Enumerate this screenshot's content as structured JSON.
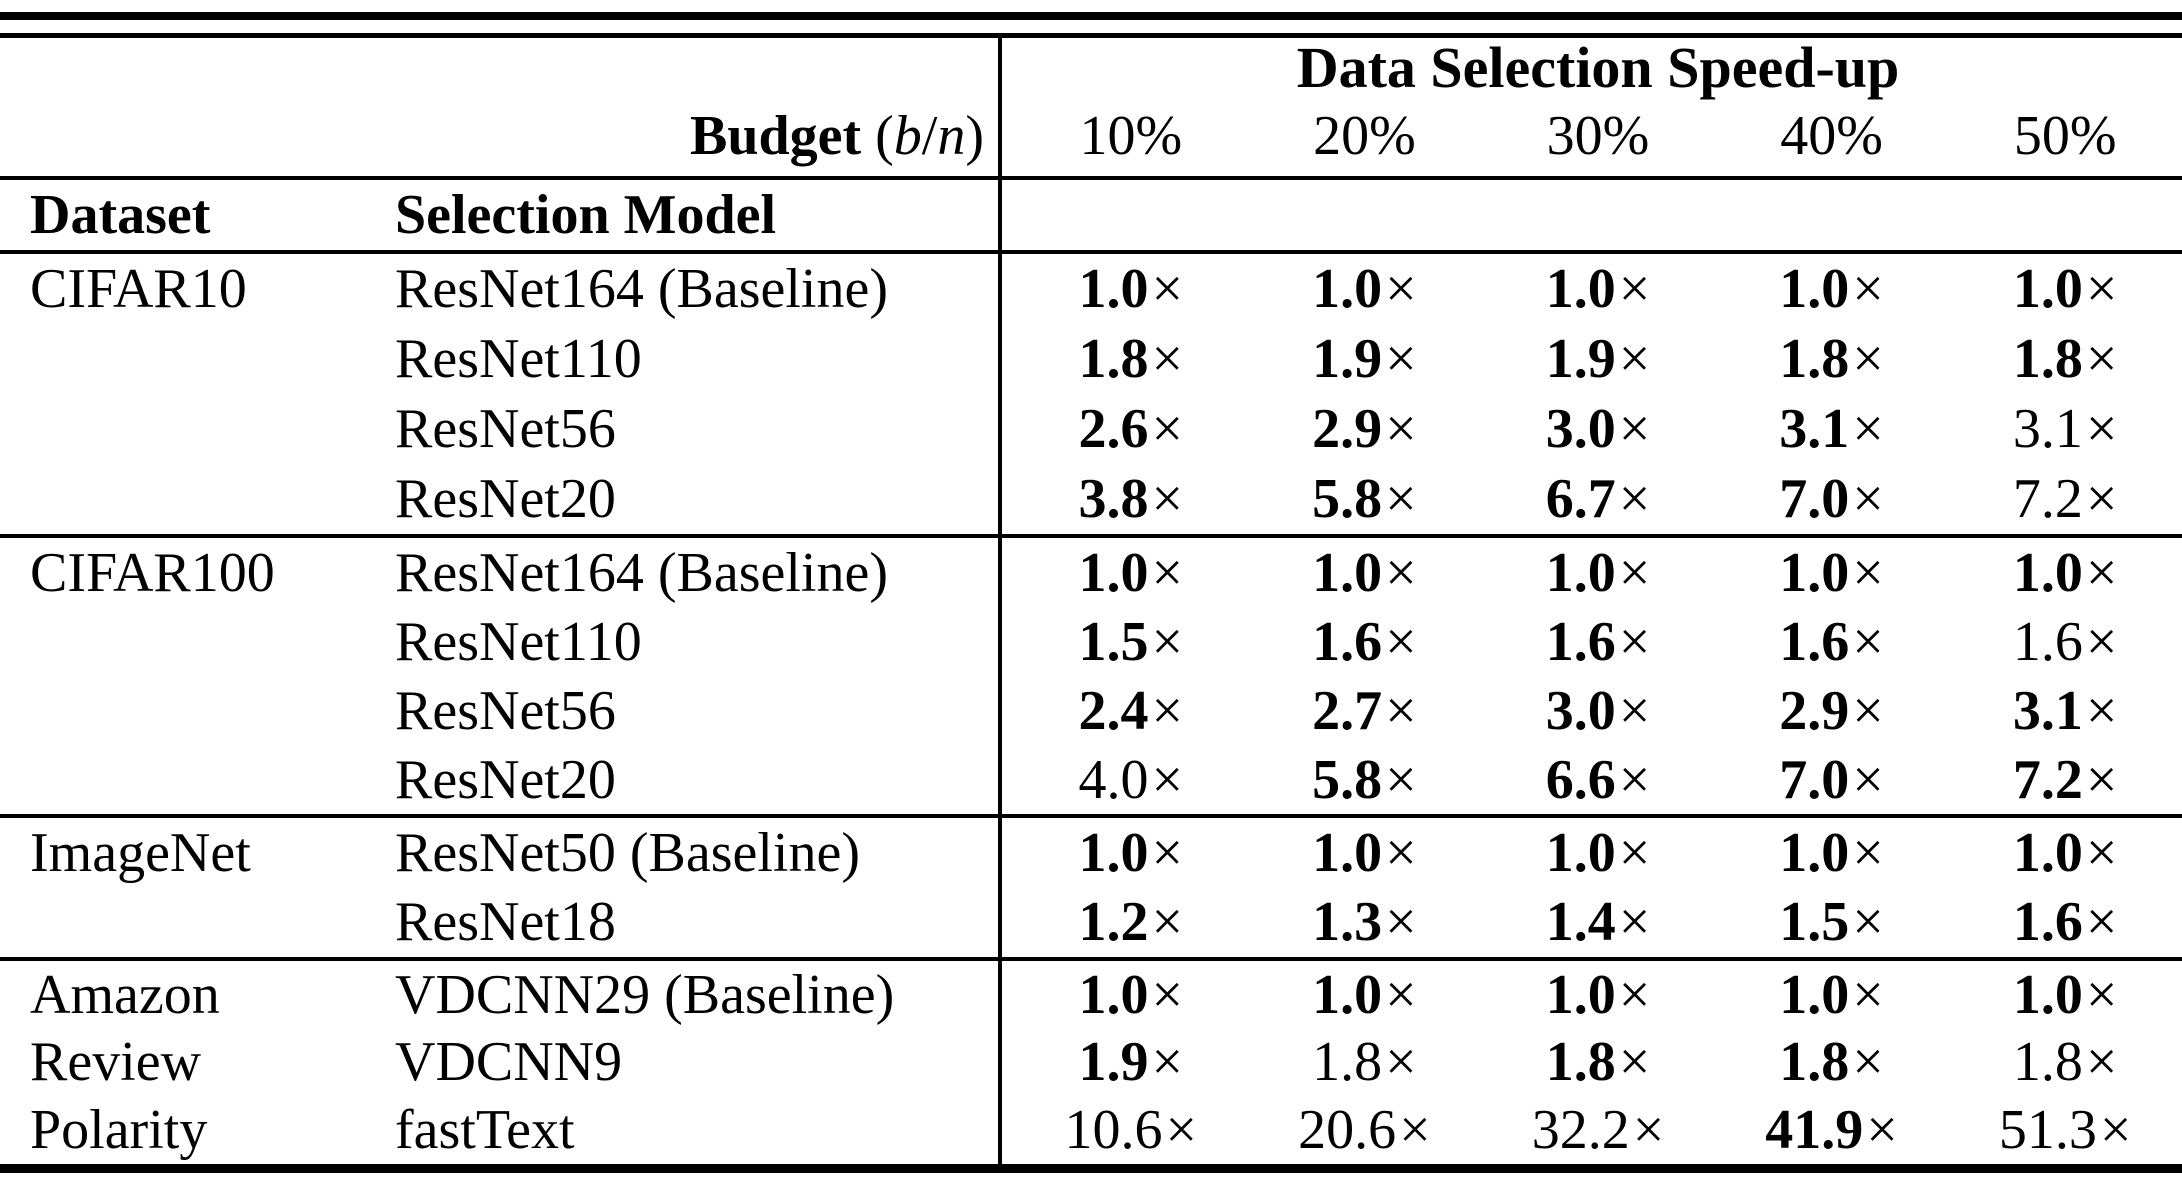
{
  "header": {
    "speedup_title": "Data Selection Speed-up",
    "budget": {
      "label": "Budget",
      "open": "(",
      "var_b": "b",
      "slash": "/",
      "var_n": "n",
      "close": ")"
    },
    "percent_columns": [
      "10%",
      "20%",
      "30%",
      "40%",
      "50%"
    ],
    "dataset_label": "Dataset",
    "selection_model_label": "Selection Model"
  },
  "times_symbol": "×",
  "colors": {
    "text": "#000000",
    "background": "#ffffff",
    "rules": "#000000"
  },
  "table": {
    "groups": [
      {
        "dataset_lines": [
          "CIFAR10"
        ],
        "rows": [
          {
            "model": "ResNet164 (Baseline)",
            "cells": [
              {
                "v": "1.0",
                "b": true
              },
              {
                "v": "1.0",
                "b": true
              },
              {
                "v": "1.0",
                "b": true
              },
              {
                "v": "1.0",
                "b": true
              },
              {
                "v": "1.0",
                "b": true
              }
            ]
          },
          {
            "model": "ResNet110",
            "cells": [
              {
                "v": "1.8",
                "b": true
              },
              {
                "v": "1.9",
                "b": true
              },
              {
                "v": "1.9",
                "b": true
              },
              {
                "v": "1.8",
                "b": true
              },
              {
                "v": "1.8",
                "b": true
              }
            ]
          },
          {
            "model": "ResNet56",
            "cells": [
              {
                "v": "2.6",
                "b": true
              },
              {
                "v": "2.9",
                "b": true
              },
              {
                "v": "3.0",
                "b": true
              },
              {
                "v": "3.1",
                "b": true
              },
              {
                "v": "3.1",
                "b": false
              }
            ]
          },
          {
            "model": "ResNet20",
            "cells": [
              {
                "v": "3.8",
                "b": true
              },
              {
                "v": "5.8",
                "b": true
              },
              {
                "v": "6.7",
                "b": true
              },
              {
                "v": "7.0",
                "b": true
              },
              {
                "v": "7.2",
                "b": false
              }
            ]
          }
        ]
      },
      {
        "dataset_lines": [
          "CIFAR100"
        ],
        "rows": [
          {
            "model": "ResNet164 (Baseline)",
            "cells": [
              {
                "v": "1.0",
                "b": true
              },
              {
                "v": "1.0",
                "b": true
              },
              {
                "v": "1.0",
                "b": true
              },
              {
                "v": "1.0",
                "b": true
              },
              {
                "v": "1.0",
                "b": true
              }
            ]
          },
          {
            "model": "ResNet110",
            "cells": [
              {
                "v": "1.5",
                "b": true
              },
              {
                "v": "1.6",
                "b": true
              },
              {
                "v": "1.6",
                "b": true
              },
              {
                "v": "1.6",
                "b": true
              },
              {
                "v": "1.6",
                "b": false
              }
            ]
          },
          {
            "model": "ResNet56",
            "cells": [
              {
                "v": "2.4",
                "b": true
              },
              {
                "v": "2.7",
                "b": true
              },
              {
                "v": "3.0",
                "b": true
              },
              {
                "v": "2.9",
                "b": true
              },
              {
                "v": "3.1",
                "b": true
              }
            ]
          },
          {
            "model": "ResNet20",
            "cells": [
              {
                "v": "4.0",
                "b": false
              },
              {
                "v": "5.8",
                "b": true
              },
              {
                "v": "6.6",
                "b": true
              },
              {
                "v": "7.0",
                "b": true
              },
              {
                "v": "7.2",
                "b": true
              }
            ]
          }
        ]
      },
      {
        "dataset_lines": [
          "ImageNet"
        ],
        "rows": [
          {
            "model": "ResNet50 (Baseline)",
            "cells": [
              {
                "v": "1.0",
                "b": true
              },
              {
                "v": "1.0",
                "b": true
              },
              {
                "v": "1.0",
                "b": true
              },
              {
                "v": "1.0",
                "b": true
              },
              {
                "v": "1.0",
                "b": true
              }
            ]
          },
          {
            "model": "ResNet18",
            "cells": [
              {
                "v": "1.2",
                "b": true
              },
              {
                "v": "1.3",
                "b": true
              },
              {
                "v": "1.4",
                "b": true
              },
              {
                "v": "1.5",
                "b": true
              },
              {
                "v": "1.6",
                "b": true
              }
            ]
          }
        ]
      },
      {
        "dataset_lines": [
          "Amazon",
          "Review",
          "Polarity"
        ],
        "rows": [
          {
            "model": "VDCNN29 (Baseline)",
            "cells": [
              {
                "v": "1.0",
                "b": true
              },
              {
                "v": "1.0",
                "b": true
              },
              {
                "v": "1.0",
                "b": true
              },
              {
                "v": "1.0",
                "b": true
              },
              {
                "v": "1.0",
                "b": true
              }
            ]
          },
          {
            "model": "VDCNN9",
            "cells": [
              {
                "v": "1.9",
                "b": true
              },
              {
                "v": "1.8",
                "b": false
              },
              {
                "v": "1.8",
                "b": true
              },
              {
                "v": "1.8",
                "b": true
              },
              {
                "v": "1.8",
                "b": false
              }
            ]
          },
          {
            "model": "fastText",
            "cells": [
              {
                "v": "10.6",
                "b": false
              },
              {
                "v": "20.6",
                "b": false
              },
              {
                "v": "32.2",
                "b": false
              },
              {
                "v": "41.9",
                "b": true
              },
              {
                "v": "51.3",
                "b": false
              }
            ]
          }
        ]
      }
    ]
  }
}
